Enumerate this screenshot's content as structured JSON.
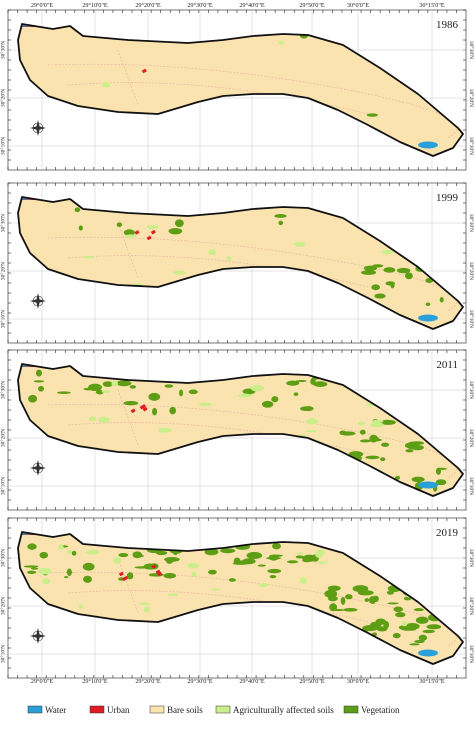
{
  "colors": {
    "water": "#2aa0d8",
    "urban": "#e01b24",
    "bare": "#fbe3b0",
    "agri": "#c9ee8a",
    "veg": "#5e9e14"
  },
  "top_labels": [
    "29°0'0\"E",
    "29°10'0\"E",
    "29°20'0\"E",
    "29°30'0\"E",
    "29°40'0\"E",
    "29°50'0\"E",
    "30°0'0\"E",
    "30°15'0\"E"
  ],
  "bottom_labels": [
    "29°0'0\"E",
    "29°10'0\"E",
    "29°20'0\"E",
    "29°30'0\"E",
    "29°40'0\"E",
    "29°50'0\"E",
    "30°0'0\"E",
    "30°15'0\"E"
  ],
  "left_labels": [
    "30°30'N",
    "30°20'N",
    "30°10'N"
  ],
  "right_labels": [
    "30°30'N",
    "30°20'N",
    "30°10'N"
  ],
  "panels": [
    {
      "year": "1986",
      "veg": 0.02,
      "agri": 0.01,
      "urban": 0.01
    },
    {
      "year": "1999",
      "veg": 0.1,
      "agri": 0.05,
      "urban": 0.03
    },
    {
      "year": "2011",
      "veg": 0.28,
      "agri": 0.08,
      "urban": 0.04
    },
    {
      "year": "2019",
      "veg": 0.45,
      "agri": 0.12,
      "urban": 0.06
    }
  ],
  "legend": [
    {
      "key": "water",
      "label": "Water"
    },
    {
      "key": "urban",
      "label": "Urban"
    },
    {
      "key": "bare",
      "label": "Bare soils"
    },
    {
      "key": "agri",
      "label": "Agriculturally affected soils"
    },
    {
      "key": "veg",
      "label": "Vegetation"
    }
  ]
}
